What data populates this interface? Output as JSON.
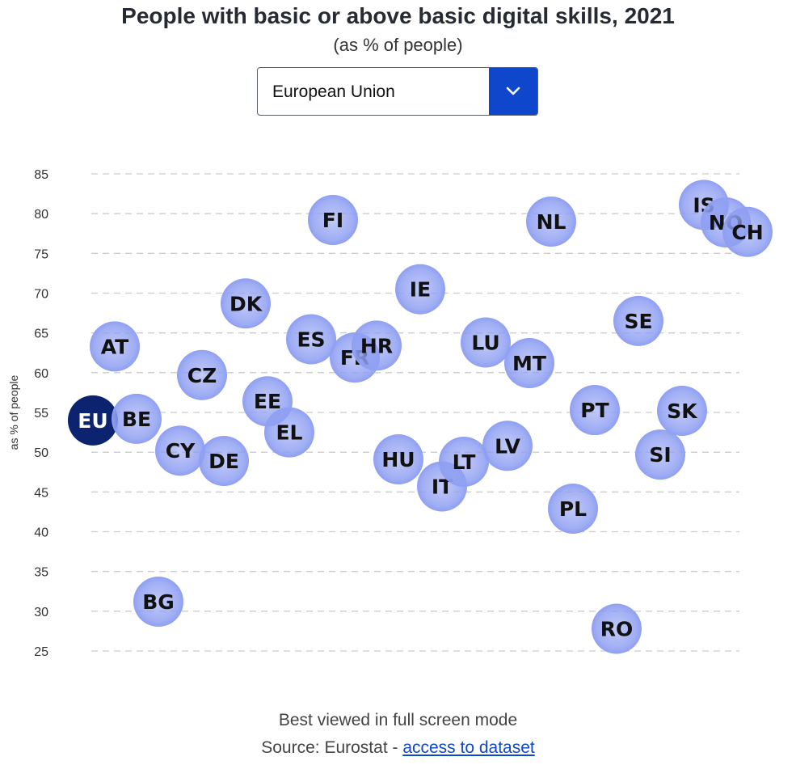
{
  "header": {
    "title": "People with basic or above basic digital skills, 2021",
    "subtitle": "(as % of people)"
  },
  "selector": {
    "selected": "European Union",
    "icon": "chevron-down-icon"
  },
  "footer": {
    "note": "Best viewed in full screen mode",
    "source_prefix": "Source: Eurostat - ",
    "source_link": "access to dataset"
  },
  "colors": {
    "bubble": "#8f9ff2",
    "bubble_highlight": "#0c2470",
    "accent": "#0e47cb",
    "grid": "#cccccc"
  },
  "chart_data": {
    "type": "scatter",
    "title": "People with basic or above basic digital skills, 2021",
    "subtitle": "(as % of people)",
    "ylabel": "as % of people",
    "ylim": [
      25,
      85
    ],
    "yticks": [
      25,
      30,
      35,
      40,
      45,
      50,
      55,
      60,
      65,
      70,
      75,
      80,
      85
    ],
    "grid": true,
    "highlight": "EU",
    "points": [
      {
        "label": "EU",
        "y": 54
      },
      {
        "label": "AT",
        "y": 63.3
      },
      {
        "label": "BE",
        "y": 54.2
      },
      {
        "label": "BG",
        "y": 31.2
      },
      {
        "label": "CY",
        "y": 50.2
      },
      {
        "label": "CZ",
        "y": 59.7
      },
      {
        "label": "DE",
        "y": 48.9
      },
      {
        "label": "DK",
        "y": 68.7
      },
      {
        "label": "EE",
        "y": 56.4
      },
      {
        "label": "EL",
        "y": 52.5
      },
      {
        "label": "ES",
        "y": 64.2
      },
      {
        "label": "FI",
        "y": 79.2
      },
      {
        "label": "FR",
        "y": 61.9
      },
      {
        "label": "HR",
        "y": 63.4
      },
      {
        "label": "HU",
        "y": 49.1
      },
      {
        "label": "IE",
        "y": 70.5
      },
      {
        "label": "IT",
        "y": 45.7
      },
      {
        "label": "LT",
        "y": 48.8
      },
      {
        "label": "LU",
        "y": 63.8
      },
      {
        "label": "LV",
        "y": 50.8
      },
      {
        "label": "MT",
        "y": 61.2
      },
      {
        "label": "NL",
        "y": 79
      },
      {
        "label": "PL",
        "y": 42.9
      },
      {
        "label": "PT",
        "y": 55.3
      },
      {
        "label": "RO",
        "y": 27.8
      },
      {
        "label": "SE",
        "y": 66.5
      },
      {
        "label": "SI",
        "y": 49.7
      },
      {
        "label": "SK",
        "y": 55.2
      },
      {
        "label": "IS",
        "y": 81.1
      },
      {
        "label": "NO",
        "y": 78.9
      },
      {
        "label": "CH",
        "y": 77.7
      }
    ]
  }
}
